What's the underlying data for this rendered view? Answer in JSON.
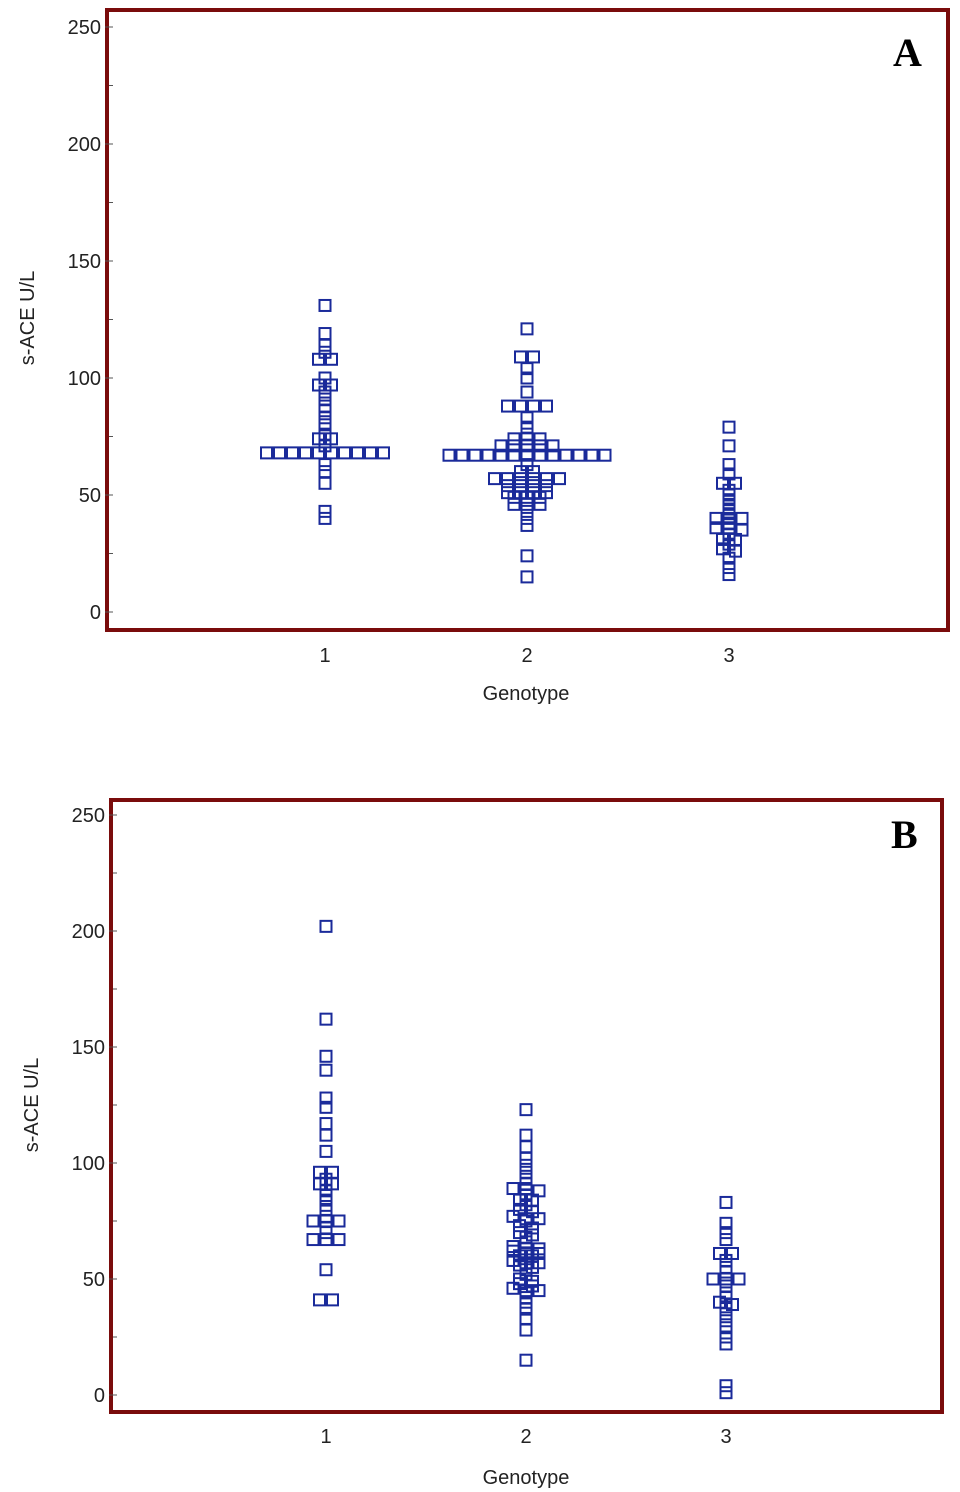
{
  "colors": {
    "frame": "#7a0c0c",
    "marker": "#1a2a9a",
    "axis": "#555555"
  },
  "chart_data": [
    {
      "type": "scatter",
      "title": "A",
      "xlabel": "Genotype",
      "ylabel": "s-ACE U/L",
      "ylim": [
        0,
        250
      ],
      "yticks": [
        0,
        50,
        100,
        150,
        200,
        250
      ],
      "categories": [
        "1",
        "2",
        "3"
      ],
      "series": [
        {
          "name": "1",
          "values": [
            131,
            119,
            114,
            111,
            108,
            108,
            100,
            97,
            97,
            94,
            91,
            88,
            86,
            83,
            80,
            76,
            74,
            74,
            71,
            68,
            68,
            68,
            68,
            68,
            68,
            68,
            68,
            68,
            68,
            63,
            60,
            55,
            43,
            40
          ]
        },
        {
          "name": "2",
          "values": [
            121,
            109,
            109,
            104,
            100,
            94,
            88,
            88,
            88,
            88,
            83,
            79,
            76,
            74,
            74,
            74,
            71,
            71,
            71,
            71,
            71,
            67,
            67,
            67,
            67,
            67,
            67,
            67,
            67,
            67,
            67,
            67,
            67,
            67,
            63,
            60,
            60,
            57,
            57,
            57,
            57,
            57,
            57,
            54,
            54,
            54,
            54,
            51,
            51,
            51,
            51,
            49,
            49,
            49,
            46,
            46,
            46,
            43,
            40,
            37,
            24,
            15
          ]
        },
        {
          "name": "3",
          "values": [
            79,
            71,
            63,
            59,
            55,
            55,
            52,
            50,
            48,
            46,
            44,
            42,
            40,
            40,
            40,
            38,
            36,
            36,
            35,
            33,
            31,
            31,
            29,
            27,
            26,
            23,
            19,
            16
          ]
        }
      ]
    },
    {
      "type": "scatter",
      "title": "B",
      "xlabel": "Genotype",
      "ylabel": "s-ACE U/L",
      "ylim": [
        0,
        250
      ],
      "yticks": [
        0,
        50,
        100,
        150,
        200,
        250
      ],
      "categories": [
        "1",
        "2",
        "3"
      ],
      "series": [
        {
          "name": "1",
          "values": [
            202,
            162,
            146,
            140,
            128,
            124,
            117,
            112,
            105,
            96,
            96,
            93,
            91,
            91,
            88,
            86,
            84,
            80,
            77,
            75,
            75,
            75,
            72,
            70,
            67,
            67,
            67,
            54,
            41,
            41
          ]
        },
        {
          "name": "2",
          "values": [
            123,
            112,
            107,
            102,
            99,
            96,
            93,
            91,
            89,
            89,
            88,
            86,
            84,
            84,
            82,
            80,
            79,
            77,
            76,
            76,
            75,
            73,
            72,
            70,
            69,
            68,
            66,
            64,
            63,
            63,
            62,
            61,
            61,
            60,
            60,
            58,
            57,
            57,
            56,
            55,
            54,
            52,
            50,
            49,
            48,
            47,
            46,
            45,
            45,
            44,
            42,
            40,
            37,
            33,
            28,
            15
          ]
        },
        {
          "name": "3",
          "values": [
            83,
            74,
            70,
            67,
            61,
            61,
            58,
            55,
            53,
            50,
            50,
            50,
            47,
            44,
            42,
            40,
            39,
            38,
            35,
            32,
            29,
            25,
            22,
            4,
            1
          ]
        }
      ]
    }
  ]
}
